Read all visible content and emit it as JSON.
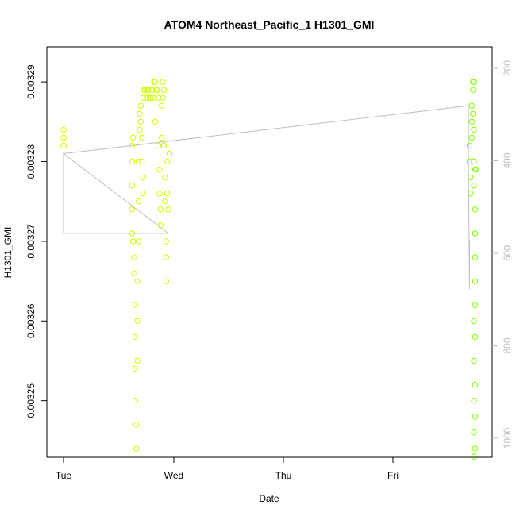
{
  "chart_data": {
    "type": "scatter",
    "title": "ATOM4 Northeast_Pacific_1 H1301_GMI",
    "xlabel": "Date",
    "ylabel": "H1301_GMI",
    "x_ticks": [
      "Tue",
      "Wed",
      "Thu",
      "Fri"
    ],
    "xlim": [
      0,
      3.85
    ],
    "ylim": [
      0.003242,
      0.003293
    ],
    "y_ticks": [
      0.00325,
      0.00326,
      0.00327,
      0.00328,
      0.00329
    ],
    "y_tick_labels": [
      "0.00325",
      "0.00326",
      "0.00327",
      "0.00328",
      "0.00329"
    ],
    "y2lim": [
      1015,
      170
    ],
    "y2_ticks": [
      200,
      400,
      600,
      800,
      1000
    ],
    "y2_tick_labels": [
      "200",
      "400",
      "600",
      "800",
      "1000"
    ],
    "grid": false,
    "colors": {
      "series_day1": "#e6ff00",
      "series_day2": "#ccff00",
      "series_day4": "#7fff00",
      "pressure_line": "#bebebe",
      "axis": "#000000",
      "right_axis": "#bebebe"
    },
    "series": [
      {
        "values": [
          [
            0.0,
            0.003282
          ],
          [
            0.0,
            0.003283
          ],
          [
            0.0,
            0.003284
          ],
          [
            0.0,
            0.003282
          ],
          [
            0.0,
            0.003283
          ]
        ]
      },
      {
        "values": [
          [
            0.62,
            0.003282
          ],
          [
            0.62,
            0.00328
          ],
          [
            0.62,
            0.003277
          ],
          [
            0.62,
            0.003274
          ],
          [
            0.62,
            0.003271
          ],
          [
            0.63,
            0.003283
          ],
          [
            0.63,
            0.00327
          ],
          [
            0.64,
            0.003268
          ],
          [
            0.64,
            0.003266
          ],
          [
            0.65,
            0.003262
          ],
          [
            0.65,
            0.003258
          ],
          [
            0.65,
            0.003254
          ],
          [
            0.65,
            0.00325
          ],
          [
            0.66,
            0.003247
          ],
          [
            0.66,
            0.003244
          ],
          [
            0.67,
            0.003255
          ],
          [
            0.67,
            0.00326
          ],
          [
            0.67,
            0.003265
          ],
          [
            0.68,
            0.00327
          ],
          [
            0.68,
            0.003275
          ],
          [
            0.68,
            0.00328
          ],
          [
            0.69,
            0.003284
          ],
          [
            0.69,
            0.003286
          ],
          [
            0.7,
            0.003287
          ],
          [
            0.7,
            0.003285
          ],
          [
            0.71,
            0.003283
          ],
          [
            0.71,
            0.00328
          ],
          [
            0.72,
            0.003278
          ],
          [
            0.72,
            0.003276
          ],
          [
            0.72,
            0.003288
          ],
          [
            0.73,
            0.003289
          ],
          [
            0.74,
            0.003289
          ],
          [
            0.75,
            0.003288
          ],
          [
            0.76,
            0.003289
          ],
          [
            0.77,
            0.003289
          ],
          [
            0.78,
            0.003288
          ],
          [
            0.79,
            0.003288
          ],
          [
            0.8,
            0.003289
          ],
          [
            0.81,
            0.003288
          ],
          [
            0.82,
            0.00329
          ],
          [
            0.83,
            0.00329
          ],
          [
            0.83,
            0.003285
          ],
          [
            0.84,
            0.003289
          ],
          [
            0.85,
            0.003289
          ],
          [
            0.86,
            0.003288
          ],
          [
            0.86,
            0.003282
          ],
          [
            0.87,
            0.003279
          ],
          [
            0.87,
            0.003276
          ],
          [
            0.88,
            0.003274
          ],
          [
            0.88,
            0.003272
          ],
          [
            0.89,
            0.003283
          ],
          [
            0.89,
            0.003287
          ],
          [
            0.9,
            0.003288
          ],
          [
            0.9,
            0.00329
          ],
          [
            0.91,
            0.003289
          ],
          [
            0.91,
            0.003282
          ],
          [
            0.92,
            0.003278
          ],
          [
            0.92,
            0.003275
          ],
          [
            0.93,
            0.00327
          ],
          [
            0.93,
            0.003268
          ],
          [
            0.93,
            0.003265
          ],
          [
            0.94,
            0.00328
          ],
          [
            0.94,
            0.003276
          ],
          [
            0.95,
            0.003274
          ],
          [
            0.96,
            0.003281
          ]
        ]
      },
      {
        "values": [
          [
            3.68,
            0.003282
          ],
          [
            3.68,
            0.00328
          ],
          [
            3.69,
            0.003278
          ],
          [
            3.69,
            0.003276
          ],
          [
            3.7,
            0.003283
          ],
          [
            3.7,
            0.003285
          ],
          [
            3.7,
            0.003287
          ],
          [
            3.71,
            0.003289
          ],
          [
            3.71,
            0.00329
          ],
          [
            3.72,
            0.00329
          ],
          [
            3.71,
            0.003286
          ],
          [
            3.72,
            0.003284
          ],
          [
            3.72,
            0.00328
          ],
          [
            3.72,
            0.003277
          ],
          [
            3.73,
            0.003279
          ],
          [
            3.73,
            0.003274
          ],
          [
            3.73,
            0.003271
          ],
          [
            3.73,
            0.003268
          ],
          [
            3.73,
            0.003265
          ],
          [
            3.73,
            0.003262
          ],
          [
            3.72,
            0.00326
          ],
          [
            3.73,
            0.003258
          ],
          [
            3.72,
            0.003255
          ],
          [
            3.73,
            0.003252
          ],
          [
            3.72,
            0.00325
          ],
          [
            3.73,
            0.003248
          ],
          [
            3.72,
            0.003246
          ],
          [
            3.73,
            0.003244
          ],
          [
            3.72,
            0.003243
          ],
          [
            3.74,
            0.003279
          ]
        ]
      }
    ],
    "pressure_line": [
      [
        0.0,
        0.003281
      ],
      [
        0.0,
        0.003271
      ],
      [
        0.95,
        0.003271
      ],
      [
        0.0,
        0.003281
      ],
      [
        3.67,
        0.003287
      ],
      [
        3.67,
        0.003279
      ],
      [
        3.68,
        0.003264
      ],
      [
        3.68,
        0.00327
      ]
    ]
  }
}
